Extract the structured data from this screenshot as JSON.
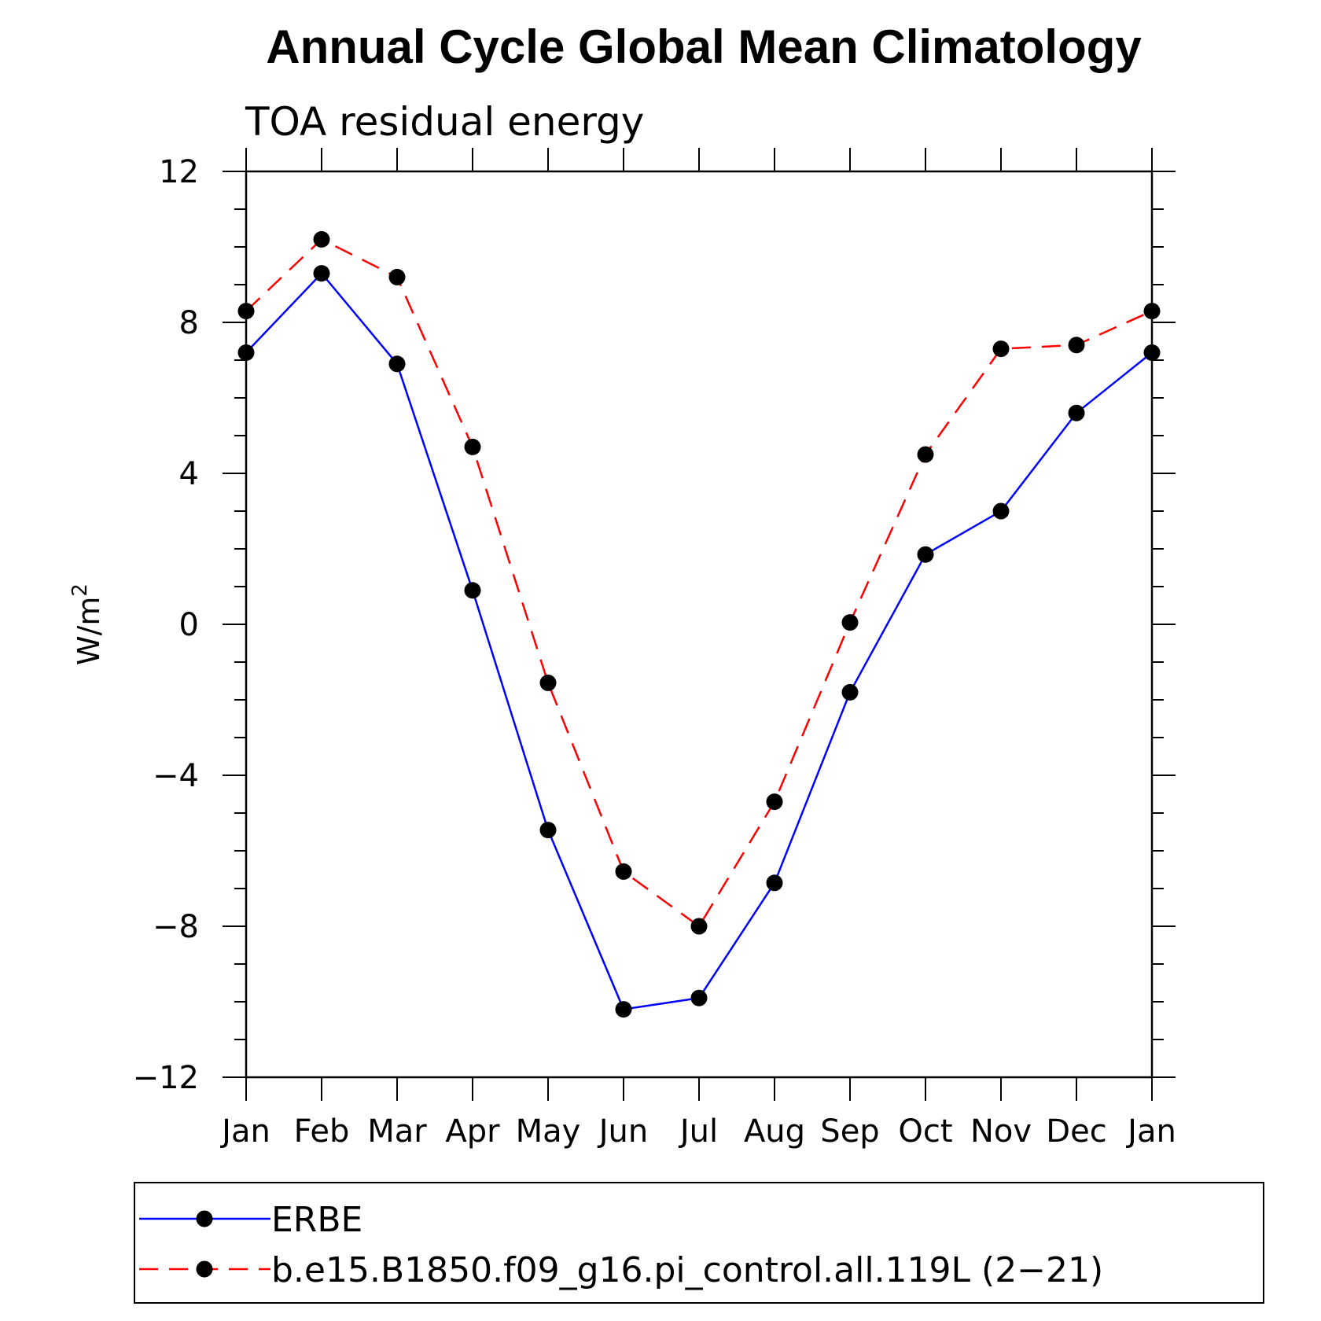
{
  "chart_data": {
    "type": "line",
    "title": "Annual Cycle Global Mean Climatology",
    "subtitle": "TOA residual energy",
    "xlabel": "",
    "ylabel": "W/m",
    "ylabel_superscript": "2",
    "ylim": [
      -12,
      12
    ],
    "yticks": [
      -12,
      -8,
      -4,
      0,
      4,
      8,
      12
    ],
    "ytick_labels": [
      "−12",
      "−8",
      "−4",
      "0",
      "4",
      "8",
      "12"
    ],
    "categories": [
      "Jan",
      "Feb",
      "Mar",
      "Apr",
      "May",
      "Jun",
      "Jul",
      "Aug",
      "Sep",
      "Oct",
      "Nov",
      "Dec",
      "Jan"
    ],
    "series": [
      {
        "name": "ERBE",
        "color": "#0000ff",
        "style": "solid",
        "values": [
          7.2,
          9.3,
          6.9,
          0.9,
          -5.45,
          -10.2,
          -9.9,
          -6.85,
          -1.8,
          1.85,
          3.0,
          5.6,
          7.2
        ]
      },
      {
        "name": "b.e15.B1850.f09_g16.pi_control.all.119L (2−21)",
        "color": "#ff0000",
        "style": "dashed",
        "values": [
          8.3,
          10.2,
          9.2,
          4.7,
          -1.55,
          -6.55,
          -8.0,
          -4.7,
          0.05,
          4.5,
          7.3,
          7.4,
          8.3
        ]
      }
    ],
    "marker_color": "#000000",
    "grid": false,
    "legend_position": "bottom"
  }
}
